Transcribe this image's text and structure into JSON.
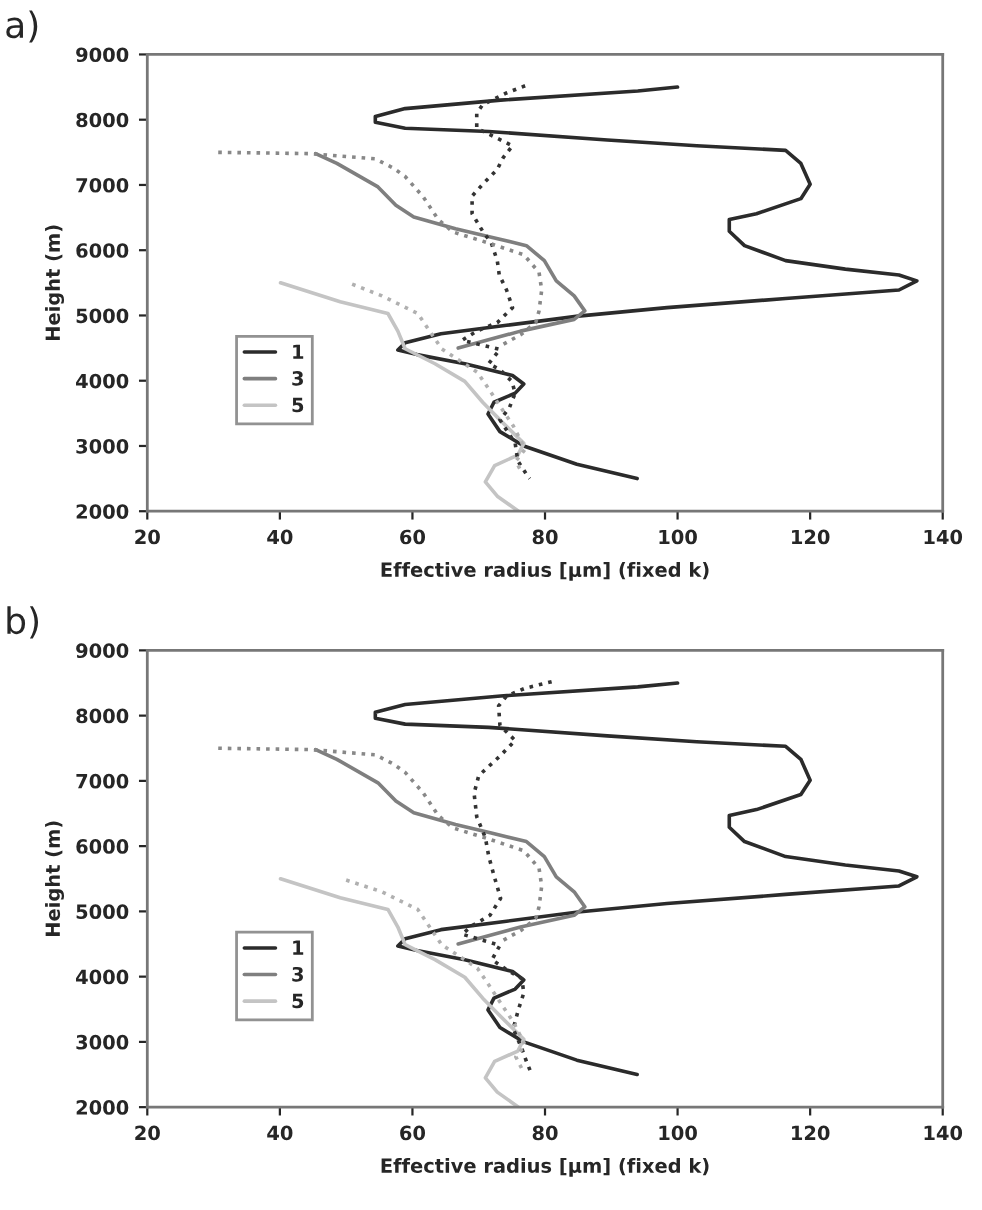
{
  "chart_data": [
    {
      "type": "line",
      "title": "a)",
      "xlabel": "Effective radius [µm] (fixed k)",
      "ylabel": "Height (m)",
      "xlim": [
        20,
        140
      ],
      "ylim": [
        2000,
        9000
      ],
      "xticks": [
        20,
        40,
        60,
        80,
        100,
        120,
        140
      ],
      "yticks": [
        2000,
        3000,
        4000,
        5000,
        6000,
        7000,
        8000,
        9000
      ],
      "legend": "lower left",
      "series": [
        {
          "name": "1",
          "color": "#2b2b2b",
          "line_style": "solid",
          "x": [
            100,
            94,
            73.3,
            58.9,
            54.4,
            54.4,
            58.9,
            71.5,
            89.4,
            102.9,
            116.3,
            118.6,
            120,
            118.6,
            111.9,
            107.8,
            107.8,
            110.1,
            116.3,
            125.3,
            133.4,
            136.1,
            133.4,
            116.3,
            98.4,
            85,
            74.2,
            64.3,
            58.9,
            57.8,
            60.7,
            67.9,
            75.1,
            76.8,
            75.5,
            72.3,
            71.4,
            73.2,
            76.8,
            84.8,
            93.9
          ],
          "values": [
            8500,
            8440,
            8300,
            8170,
            8050,
            7960,
            7870,
            7820,
            7690,
            7600,
            7530,
            7330,
            7010,
            6790,
            6560,
            6470,
            6290,
            6070,
            5840,
            5710,
            5620,
            5530,
            5390,
            5260,
            5120,
            4990,
            4850,
            4720,
            4580,
            4470,
            4400,
            4260,
            4080,
            3950,
            3810,
            3670,
            3490,
            3220,
            3000,
            2720,
            2500
          ]
        },
        {
          "name": "3",
          "color": "#7f7f7f",
          "line_style": "solid",
          "x": [
            45.4,
            48.6,
            54.8,
            57.5,
            60.2,
            66.5,
            71.9,
            77.2,
            79.9,
            81.7,
            84.4,
            86,
            84.4,
            76.3,
            66.9
          ],
          "values": [
            7480,
            7330,
            6970,
            6690,
            6510,
            6330,
            6200,
            6070,
            5840,
            5530,
            5300,
            5070,
            4940,
            4760,
            4500
          ]
        },
        {
          "name": "5",
          "color": "#c4c4c4",
          "line_style": "solid",
          "x": [
            40.1,
            49.1,
            56.3,
            57.8,
            58.9,
            63.4,
            67.9,
            70.6,
            73.2,
            76.8,
            75.9,
            72.4,
            71,
            72.8,
            76
          ],
          "values": [
            5500,
            5210,
            5030,
            4760,
            4490,
            4260,
            3990,
            3670,
            3400,
            3040,
            2860,
            2700,
            2450,
            2230,
            2000
          ]
        },
        {
          "color": "#333333",
          "line_style": "dotted",
          "x": [
            77,
            74.2,
            70.6,
            69.7,
            69.7,
            71.5,
            75.1,
            73.7,
            72.8,
            70.6,
            69,
            69,
            70.6,
            71.9,
            72.8,
            73.1,
            74.2,
            75.1,
            72.8,
            69.7,
            67.5,
            73.2,
            71.5,
            73.2,
            75,
            75.5,
            74.6,
            73.2,
            75.5,
            75.9,
            77.3,
            77.7
          ],
          "values": [
            8520,
            8410,
            8230,
            8100,
            7870,
            7780,
            7600,
            7420,
            7240,
            7010,
            6830,
            6560,
            6290,
            6110,
            5840,
            5620,
            5390,
            5120,
            4890,
            4760,
            4620,
            4480,
            4260,
            4170,
            3990,
            3810,
            3580,
            3400,
            3040,
            2770,
            2550,
            2500
          ]
        },
        {
          "color": "#888888",
          "line_style": "dotted",
          "x": [
            30.7,
            44.6,
            54.4,
            57.1,
            58.9,
            61.6,
            63.9,
            66.1,
            71.5,
            76.8,
            79.1,
            79.5,
            79.1,
            78.6,
            76.4,
            73.2
          ],
          "values": [
            7500,
            7480,
            7400,
            7260,
            7130,
            6820,
            6470,
            6280,
            6110,
            5930,
            5660,
            5390,
            5070,
            4890,
            4710,
            4530
          ]
        },
        {
          "color": "#b0b0b0",
          "line_style": "dotted",
          "x": [
            50.9,
            55.4,
            60.8,
            62.6,
            64.4,
            67.1,
            69.8,
            71.6,
            73.4,
            75.2,
            77,
            75.6,
            76.5
          ],
          "values": [
            5480,
            5300,
            5030,
            4760,
            4490,
            4310,
            4130,
            3860,
            3580,
            3310,
            2950,
            2770,
            2590
          ]
        }
      ]
    },
    {
      "type": "line",
      "title": "b)",
      "xlabel": "Effective radius [µm] (fixed k)",
      "ylabel": "Height (m)",
      "xlim": [
        20,
        140
      ],
      "ylim": [
        2000,
        9000
      ],
      "xticks": [
        20,
        40,
        60,
        80,
        100,
        120,
        140
      ],
      "yticks": [
        2000,
        3000,
        4000,
        5000,
        6000,
        7000,
        8000,
        9000
      ],
      "legend": "lower left",
      "series": [
        {
          "name": "1",
          "color": "#2b2b2b",
          "line_style": "solid",
          "x": [
            100,
            94,
            73.3,
            58.9,
            54.4,
            54.4,
            58.9,
            71.5,
            89.4,
            102.9,
            116.3,
            118.6,
            120,
            118.6,
            111.9,
            107.8,
            107.8,
            110.1,
            116.3,
            125.3,
            133.4,
            136.1,
            133.4,
            116.3,
            98.4,
            85,
            74.2,
            64.3,
            58.9,
            57.8,
            60.7,
            67.9,
            75.1,
            76.8,
            75.5,
            72.3,
            71.4,
            73.2,
            76.8,
            84.8,
            93.9
          ],
          "values": [
            8500,
            8440,
            8300,
            8170,
            8050,
            7960,
            7870,
            7820,
            7690,
            7600,
            7530,
            7330,
            7010,
            6790,
            6560,
            6470,
            6290,
            6070,
            5840,
            5710,
            5620,
            5530,
            5390,
            5260,
            5120,
            4990,
            4850,
            4720,
            4580,
            4470,
            4400,
            4260,
            4080,
            3950,
            3810,
            3670,
            3490,
            3220,
            3000,
            2720,
            2500
          ]
        },
        {
          "name": "3",
          "color": "#7f7f7f",
          "line_style": "solid",
          "x": [
            45.4,
            48.6,
            54.8,
            57.5,
            60.2,
            66.5,
            71.9,
            77.2,
            79.9,
            81.7,
            84.4,
            86,
            84.4,
            76.3,
            66.9
          ],
          "values": [
            7480,
            7330,
            6970,
            6690,
            6510,
            6330,
            6200,
            6070,
            5840,
            5530,
            5300,
            5070,
            4940,
            4760,
            4500
          ]
        },
        {
          "name": "5",
          "color": "#c4c4c4",
          "line_style": "solid",
          "x": [
            40.1,
            49.1,
            56.3,
            57.8,
            58.9,
            63.4,
            67.9,
            70.6,
            73.2,
            76.8,
            75.9,
            72.4,
            71,
            72.8,
            76
          ],
          "values": [
            5500,
            5210,
            5030,
            4760,
            4490,
            4260,
            3990,
            3670,
            3400,
            3040,
            2860,
            2700,
            2450,
            2230,
            2000
          ]
        },
        {
          "color": "#333333",
          "line_style": "dotted",
          "x": [
            81,
            77,
            74.2,
            73,
            73.2,
            75.5,
            73.2,
            70,
            69.3,
            69.7,
            71,
            71.5,
            72.3,
            73.3,
            71.7,
            69,
            67.5,
            73.2,
            72,
            74,
            76.5,
            76.8,
            76,
            75.2,
            76.5,
            77.2,
            78
          ],
          "values": [
            8520,
            8420,
            8300,
            8150,
            7850,
            7620,
            7380,
            7080,
            6810,
            6450,
            6130,
            5850,
            5550,
            5200,
            4940,
            4780,
            4650,
            4480,
            4260,
            4120,
            3970,
            3750,
            3500,
            3200,
            2900,
            2700,
            2500
          ]
        },
        {
          "color": "#888888",
          "line_style": "dotted",
          "x": [
            30.7,
            44.6,
            54.4,
            57.1,
            58.9,
            61.6,
            63.9,
            66.1,
            71.5,
            76.8,
            79.1,
            79.5,
            79.1,
            78.6,
            76.4,
            73.2
          ],
          "values": [
            7500,
            7480,
            7400,
            7260,
            7130,
            6820,
            6470,
            6280,
            6110,
            5930,
            5660,
            5390,
            5070,
            4890,
            4710,
            4530
          ]
        },
        {
          "color": "#b0b0b0",
          "line_style": "dotted",
          "x": [
            50,
            55.4,
            60.8,
            62.6,
            64.4,
            67.1,
            69.8,
            71.6,
            73.4,
            75.2,
            77,
            75.6,
            76.5
          ],
          "values": [
            5480,
            5300,
            5030,
            4760,
            4490,
            4310,
            4130,
            3860,
            3580,
            3310,
            2950,
            2770,
            2590
          ]
        }
      ]
    }
  ]
}
